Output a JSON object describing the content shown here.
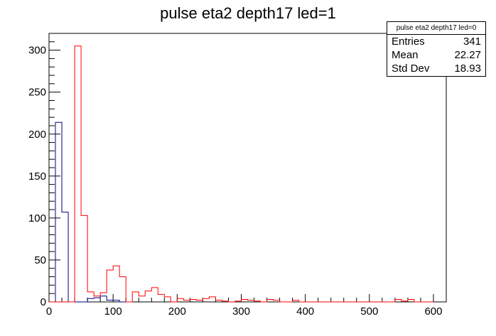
{
  "chart_data": {
    "type": "histogram",
    "title": "pulse eta2 depth17 led=1",
    "xlabel": "",
    "ylabel": "",
    "xlim": [
      0,
      620
    ],
    "ylim": [
      0,
      320
    ],
    "xticks": [
      0,
      100,
      200,
      300,
      400,
      500,
      600
    ],
    "yticks": [
      0,
      50,
      100,
      150,
      200,
      250,
      300
    ],
    "bin_width": 10,
    "grid": false,
    "legend": "top-right",
    "series": [
      {
        "color": "#000080",
        "x": [
          0,
          10,
          20,
          30,
          40,
          50,
          60,
          70,
          80,
          90,
          100,
          110,
          120
        ],
        "values": [
          0,
          214,
          107,
          0,
          0,
          0,
          4,
          5,
          7,
          2,
          2,
          0,
          0
        ]
      },
      {
        "color": "#ff0000",
        "x": [
          0,
          10,
          20,
          30,
          40,
          50,
          60,
          70,
          80,
          90,
          100,
          110,
          120,
          130,
          140,
          150,
          160,
          170,
          180,
          190,
          200,
          210,
          220,
          230,
          240,
          250,
          260,
          270,
          280,
          290,
          300,
          310,
          320,
          330,
          340,
          350,
          360,
          370,
          380,
          390,
          400,
          410,
          420,
          430,
          440,
          450,
          460,
          470,
          480,
          490,
          500,
          510,
          520,
          530,
          540,
          550,
          560,
          570,
          580,
          590
        ],
        "values": [
          0,
          0,
          0,
          0,
          305,
          103,
          12,
          7,
          11,
          38,
          43,
          30,
          0,
          12,
          7,
          13,
          17,
          9,
          6,
          0,
          4,
          2,
          3,
          2,
          4,
          6,
          2,
          1,
          0,
          1,
          3,
          2,
          1,
          0,
          3,
          2,
          0,
          0,
          2,
          0,
          0,
          0,
          0,
          0,
          0,
          0,
          0,
          0,
          0,
          0,
          0,
          0,
          0,
          0,
          3,
          1,
          3,
          0,
          0,
          0
        ]
      }
    ],
    "stats": {
      "title": "pulse eta2 depth17 led=0",
      "rows": [
        {
          "label": "Entries",
          "value": "341"
        },
        {
          "label": "Mean",
          "value": "22.27"
        },
        {
          "label": "Std Dev",
          "value": "18.93"
        }
      ]
    }
  }
}
